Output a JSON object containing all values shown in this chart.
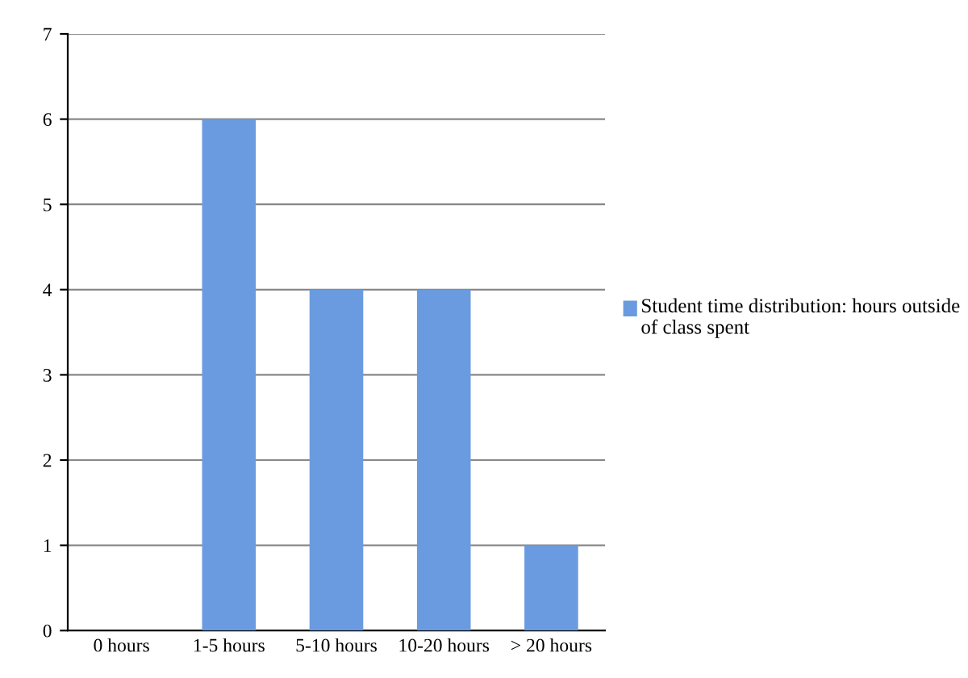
{
  "chart_data": {
    "type": "bar",
    "categories": [
      "0 hours",
      "1-5 hours",
      "5-10 hours",
      "10-20 hours",
      "> 20 hours"
    ],
    "series": [
      {
        "name": "Student time distribution: hours outside of class spent",
        "color": "#6a9be0",
        "values": [
          0,
          6,
          4,
          4,
          1
        ]
      }
    ],
    "ylim": [
      0,
      7
    ],
    "yticks": [
      0,
      1,
      2,
      3,
      4,
      5,
      6,
      7
    ],
    "grid": "y",
    "legend": "right"
  }
}
